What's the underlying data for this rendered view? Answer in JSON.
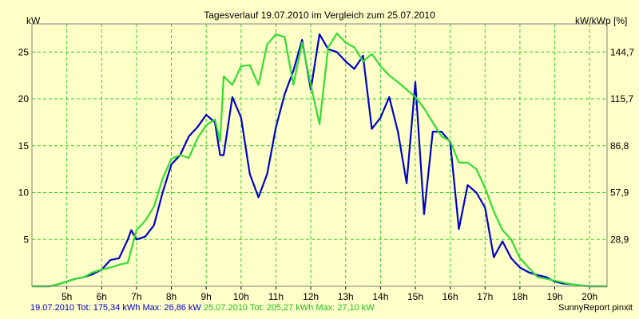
{
  "chart_data": {
    "type": "line",
    "title": "Tagesverlauf 19.07.2010 im Vergleich zum 25.07.2010",
    "ylabel": "kW",
    "y2label": "kW/kWp [%]",
    "ylim": [
      0,
      28
    ],
    "yticks": [
      5,
      10,
      15,
      20,
      25
    ],
    "y2ticks": [
      "28,9",
      "57,9",
      "86,8",
      "115,7",
      "144,7"
    ],
    "xlim": [
      4.0,
      20.5
    ],
    "xticks": [
      5,
      6,
      7,
      8,
      9,
      10,
      11,
      12,
      13,
      14,
      15,
      16,
      17,
      18,
      19,
      20
    ],
    "xticklabels": [
      "5h",
      "6h",
      "7h",
      "8h",
      "9h",
      "10h",
      "11h",
      "12h",
      "13h",
      "14h",
      "15h",
      "16h",
      "17h",
      "18h",
      "19h",
      "20h"
    ],
    "grid": true,
    "background": "#ffffc8",
    "gridcolor": "#33cc33",
    "series": [
      {
        "name": "19.07.2010",
        "color": "#0000cc",
        "x": [
          4.0,
          4.5,
          4.75,
          5.0,
          5.25,
          5.5,
          5.75,
          6.0,
          6.25,
          6.5,
          6.75,
          6.85,
          7.0,
          7.25,
          7.5,
          7.75,
          8.0,
          8.25,
          8.5,
          8.75,
          9.0,
          9.25,
          9.4,
          9.5,
          9.75,
          10.0,
          10.25,
          10.5,
          10.75,
          11.0,
          11.25,
          11.5,
          11.75,
          12.0,
          12.25,
          12.5,
          12.75,
          13.0,
          13.25,
          13.5,
          13.75,
          14.0,
          14.25,
          14.5,
          14.75,
          15.0,
          15.25,
          15.5,
          15.75,
          16.0,
          16.25,
          16.5,
          16.75,
          17.0,
          17.25,
          17.5,
          17.75,
          18.0,
          18.25,
          18.5,
          18.75,
          19.0,
          19.25,
          19.5,
          19.75,
          20.0,
          20.25,
          20.5
        ],
        "values": [
          0,
          0,
          0.2,
          0.5,
          0.8,
          1.0,
          1.3,
          1.8,
          2.8,
          3.0,
          5.0,
          6.0,
          5.0,
          5.3,
          6.5,
          10.0,
          13.0,
          14.0,
          16.0,
          17.0,
          18.3,
          17.5,
          14.0,
          14.0,
          20.2,
          18.0,
          12.0,
          9.5,
          12.0,
          17.0,
          20.5,
          23.0,
          26.3,
          21.0,
          26.9,
          25.3,
          25.0,
          24.0,
          23.2,
          24.6,
          16.8,
          18.0,
          20.2,
          16.5,
          11.0,
          21.8,
          7.7,
          16.5,
          16.5,
          15.4,
          6.1,
          10.8,
          10.0,
          8.4,
          3.1,
          4.8,
          3.0,
          2.0,
          1.5,
          1.2,
          1.0,
          0.5,
          0.3,
          0.2,
          0.1,
          0,
          0,
          0
        ]
      },
      {
        "name": "25.07.2010",
        "color": "#33dd33",
        "x": [
          4.0,
          4.5,
          4.75,
          5.0,
          5.25,
          5.5,
          5.75,
          6.0,
          6.25,
          6.5,
          6.75,
          7.0,
          7.25,
          7.5,
          7.75,
          8.0,
          8.25,
          8.5,
          8.75,
          9.0,
          9.25,
          9.4,
          9.5,
          9.75,
          10.0,
          10.25,
          10.5,
          10.75,
          11.0,
          11.25,
          11.5,
          11.75,
          12.0,
          12.25,
          12.5,
          12.75,
          13.0,
          13.25,
          13.5,
          13.75,
          14.0,
          14.25,
          14.5,
          14.75,
          15.0,
          15.25,
          15.5,
          15.75,
          16.0,
          16.25,
          16.5,
          16.75,
          17.0,
          17.25,
          17.5,
          17.75,
          18.0,
          18.25,
          18.5,
          18.75,
          19.0,
          19.25,
          19.5,
          19.75,
          20.0,
          20.25,
          20.5
        ],
        "values": [
          0,
          0,
          0.2,
          0.5,
          0.8,
          1.0,
          1.5,
          1.8,
          2.0,
          2.3,
          2.5,
          6.0,
          7.0,
          8.5,
          11.5,
          13.6,
          14.0,
          13.7,
          15.8,
          17.2,
          17.8,
          15.5,
          22.4,
          21.5,
          23.5,
          23.6,
          21.5,
          25.8,
          26.9,
          26.6,
          21.5,
          26.0,
          21.5,
          17.3,
          25.5,
          27.0,
          26.0,
          25.5,
          24.0,
          24.8,
          23.5,
          22.5,
          21.8,
          21.0,
          20.2,
          19.0,
          17.5,
          16.0,
          15.5,
          13.2,
          13.2,
          12.5,
          10.5,
          8.0,
          6.0,
          5.0,
          3.0,
          2.0,
          1.0,
          0.8,
          0.6,
          0.4,
          0.2,
          0.1,
          0,
          0,
          0
        ]
      }
    ]
  },
  "footer": {
    "left_series1": "19.07.2010 Tot: 175,34 kWh Max: 26,86 kW",
    "left_series2": "25.07.2010 Tot: 205,27 kWh Max: 27,10 kW",
    "right": "SunnyReport pinxit"
  }
}
